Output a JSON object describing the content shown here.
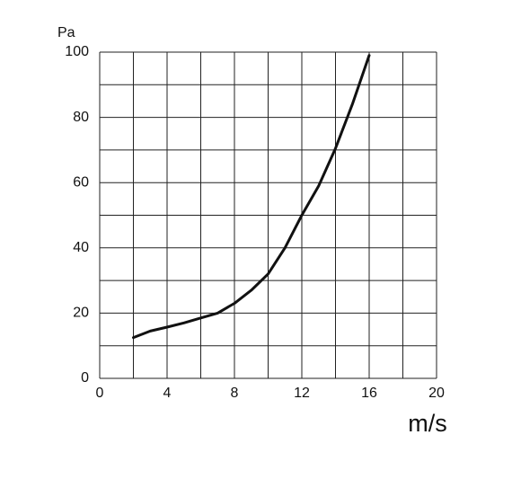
{
  "chart_data": {
    "type": "line",
    "x_label": "m/s",
    "y_label": "Pa",
    "x": [
      2,
      3,
      4,
      5,
      6,
      7,
      8,
      9,
      10,
      11,
      12,
      13,
      14,
      15,
      16
    ],
    "series": [
      {
        "color": "#111111",
        "values": [
          12.5,
          14.5,
          15.7,
          17,
          18.5,
          20,
          23,
          27,
          32,
          40,
          50,
          59,
          70.5,
          84,
          99
        ]
      }
    ],
    "xlim": [
      0,
      20
    ],
    "xticks": [
      0,
      4,
      8,
      12,
      16,
      20
    ],
    "xminorticks": [
      2,
      6,
      10,
      14,
      18
    ],
    "ylim": [
      0,
      100
    ],
    "yticks": [
      0,
      20,
      40,
      60,
      80,
      100
    ],
    "yminorticks": [
      10,
      30,
      50,
      70,
      90
    ],
    "grid": true
  }
}
